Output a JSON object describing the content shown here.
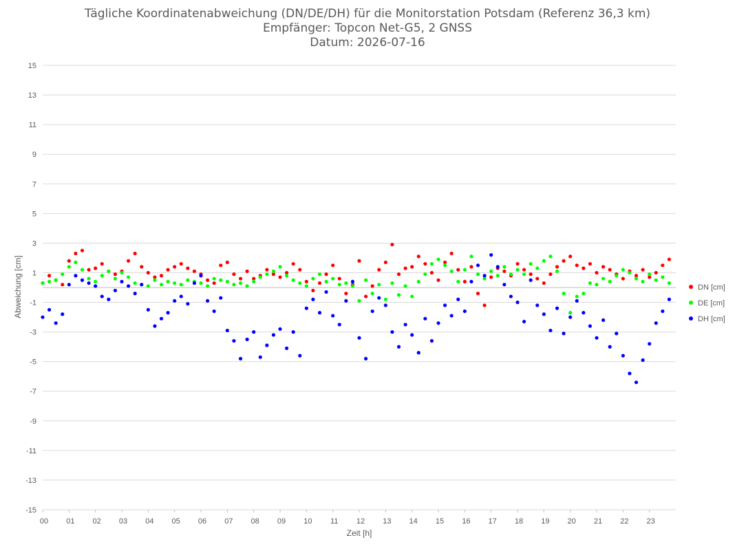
{
  "chart_data": {
    "type": "scatter",
    "title": "Tägliche Koordinatenabweichung (DN/DE/DH) für die Monitorstation Potsdam (Referenz 36,3 km)",
    "subtitle": "Empfänger: Topcon Net-G5, 2 GNSS",
    "date_line": "Datum: 2026-07-16",
    "xlabel": "Zeit [h]",
    "ylabel": "Abweichung [cm]",
    "xlim": [
      0,
      24
    ],
    "ylim": [
      -15,
      15
    ],
    "x_tick_labels": [
      "00",
      "01",
      "02",
      "03",
      "04",
      "05",
      "06",
      "07",
      "08",
      "09",
      "10",
      "11",
      "12",
      "13",
      "14",
      "15",
      "16",
      "17",
      "18",
      "19",
      "20",
      "21",
      "22",
      "23"
    ],
    "y_tick_labels": [
      "15",
      "13",
      "11",
      "9",
      "7",
      "5",
      "3",
      "1",
      "-1",
      "-3",
      "-5",
      "-7",
      "-9",
      "-11",
      "-13",
      "-15"
    ],
    "grid": true,
    "legend_position": "right",
    "series": [
      {
        "name": "DN [cm]",
        "color": "#ff0000",
        "x": [
          0.0,
          0.25,
          0.5,
          0.75,
          1.0,
          1.25,
          1.5,
          1.75,
          2.0,
          2.25,
          2.5,
          2.75,
          3.0,
          3.25,
          3.5,
          3.75,
          4.0,
          4.25,
          4.5,
          4.75,
          5.0,
          5.25,
          5.5,
          5.75,
          6.0,
          6.25,
          6.5,
          6.75,
          7.0,
          7.25,
          7.5,
          7.75,
          8.0,
          8.25,
          8.5,
          8.75,
          9.0,
          9.25,
          9.5,
          9.75,
          10.0,
          10.25,
          10.5,
          10.75,
          11.0,
          11.25,
          11.5,
          11.75,
          12.0,
          12.25,
          12.5,
          12.75,
          13.0,
          13.25,
          13.5,
          13.75,
          14.0,
          14.25,
          14.5,
          14.75,
          15.0,
          15.25,
          15.5,
          15.75,
          16.0,
          16.25,
          16.5,
          16.75,
          17.0,
          17.25,
          17.5,
          17.75,
          18.0,
          18.25,
          18.5,
          18.75,
          19.0,
          19.25,
          19.5,
          19.75,
          20.0,
          20.25,
          20.5,
          20.75,
          21.0,
          21.25,
          21.5,
          21.75,
          22.0,
          22.25,
          22.5,
          22.75,
          23.0,
          23.25,
          23.5,
          23.75
        ],
        "y": [
          0.3,
          0.8,
          0.5,
          0.2,
          1.8,
          2.3,
          2.5,
          1.2,
          1.3,
          1.6,
          1.1,
          0.9,
          1.1,
          1.8,
          2.3,
          1.4,
          1.0,
          0.7,
          0.8,
          1.2,
          1.4,
          1.6,
          1.3,
          1.1,
          0.9,
          0.5,
          0.3,
          1.5,
          1.7,
          0.9,
          0.6,
          1.1,
          0.6,
          0.8,
          1.2,
          0.9,
          0.7,
          1.0,
          1.6,
          1.2,
          0.4,
          -0.2,
          0.3,
          0.9,
          1.5,
          0.6,
          -0.4,
          0.2,
          1.8,
          -0.6,
          0.1,
          1.2,
          1.7,
          2.9,
          0.9,
          1.3,
          1.4,
          2.1,
          1.6,
          1.0,
          0.5,
          1.7,
          2.3,
          1.2,
          0.4,
          1.4,
          -0.4,
          -1.2,
          0.7,
          1.3,
          1.1,
          0.8,
          1.6,
          1.2,
          0.9,
          0.6,
          0.3,
          0.9,
          1.4,
          1.8,
          2.1,
          1.5,
          1.3,
          1.6,
          1.0,
          1.4,
          1.2,
          0.9,
          0.6,
          1.1,
          0.8,
          1.2,
          0.7,
          1.0,
          1.5,
          1.9
        ]
      },
      {
        "name": "DE [cm]",
        "color": "#00ff00",
        "x": [
          0.0,
          0.25,
          0.5,
          0.75,
          1.0,
          1.25,
          1.5,
          1.75,
          2.0,
          2.25,
          2.5,
          2.75,
          3.0,
          3.25,
          3.5,
          3.75,
          4.0,
          4.25,
          4.5,
          4.75,
          5.0,
          5.25,
          5.5,
          5.75,
          6.0,
          6.25,
          6.5,
          6.75,
          7.0,
          7.25,
          7.5,
          7.75,
          8.0,
          8.25,
          8.5,
          8.75,
          9.0,
          9.25,
          9.5,
          9.75,
          10.0,
          10.25,
          10.5,
          10.75,
          11.0,
          11.25,
          11.5,
          11.75,
          12.0,
          12.25,
          12.5,
          12.75,
          13.0,
          13.25,
          13.5,
          13.75,
          14.0,
          14.25,
          14.5,
          14.75,
          15.0,
          15.25,
          15.5,
          15.75,
          16.0,
          16.25,
          16.5,
          16.75,
          17.0,
          17.25,
          17.5,
          17.75,
          18.0,
          18.25,
          18.5,
          18.75,
          19.0,
          19.25,
          19.5,
          19.75,
          20.0,
          20.25,
          20.5,
          20.75,
          21.0,
          21.25,
          21.5,
          21.75,
          22.0,
          22.25,
          22.5,
          22.75,
          23.0,
          23.25,
          23.5,
          23.75
        ],
        "y": [
          0.3,
          0.4,
          0.5,
          0.9,
          1.4,
          1.7,
          1.2,
          0.6,
          0.4,
          0.8,
          1.1,
          0.6,
          1.0,
          0.7,
          0.3,
          0.2,
          0.1,
          0.5,
          0.2,
          0.4,
          0.3,
          0.2,
          0.5,
          0.4,
          0.3,
          0.1,
          0.6,
          0.5,
          0.4,
          0.2,
          0.3,
          0.1,
          0.4,
          0.7,
          0.9,
          1.1,
          1.4,
          0.8,
          0.5,
          0.3,
          0.1,
          0.6,
          0.9,
          0.4,
          0.6,
          0.2,
          0.3,
          0.1,
          -0.9,
          0.5,
          -0.4,
          0.2,
          -0.8,
          0.3,
          -0.5,
          0.1,
          -0.6,
          0.4,
          0.9,
          1.6,
          1.9,
          1.5,
          1.1,
          0.4,
          1.2,
          2.1,
          0.9,
          0.6,
          1.1,
          0.8,
          1.4,
          0.9,
          1.2,
          0.9,
          1.6,
          1.3,
          1.8,
          2.1,
          1.1,
          -0.4,
          -1.7,
          -0.6,
          -0.4,
          0.3,
          0.2,
          0.6,
          0.4,
          0.8,
          1.2,
          1.0,
          0.6,
          0.4,
          0.9,
          0.5,
          0.7,
          0.3
        ]
      },
      {
        "name": "DH [cm]",
        "color": "#0000ff",
        "x": [
          0.0,
          0.25,
          0.5,
          0.75,
          1.0,
          1.25,
          1.5,
          1.75,
          2.0,
          2.25,
          2.5,
          2.75,
          3.0,
          3.25,
          3.5,
          3.75,
          4.0,
          4.25,
          4.5,
          4.75,
          5.0,
          5.25,
          5.5,
          5.75,
          6.0,
          6.25,
          6.5,
          6.75,
          7.0,
          7.25,
          7.5,
          7.75,
          8.0,
          8.25,
          8.5,
          8.75,
          9.0,
          9.25,
          9.5,
          9.75,
          10.0,
          10.25,
          10.5,
          10.75,
          11.0,
          11.25,
          11.5,
          11.75,
          12.0,
          12.25,
          12.5,
          12.75,
          13.0,
          13.25,
          13.5,
          13.75,
          14.0,
          14.25,
          14.5,
          14.75,
          15.0,
          15.25,
          15.5,
          15.75,
          16.0,
          16.25,
          16.5,
          16.75,
          17.0,
          17.25,
          17.5,
          17.75,
          18.0,
          18.25,
          18.5,
          18.75,
          19.0,
          19.25,
          19.5,
          19.75,
          20.0,
          20.25,
          20.5,
          20.75,
          21.0,
          21.25,
          21.5,
          21.75,
          22.0,
          22.25,
          22.5,
          22.75,
          23.0,
          23.25,
          23.5,
          23.75
        ],
        "y": [
          -2.0,
          -1.5,
          -2.4,
          -1.8,
          0.2,
          0.8,
          0.5,
          0.3,
          0.1,
          -0.6,
          -0.8,
          -0.2,
          0.4,
          0.1,
          -0.4,
          0.2,
          -1.5,
          -2.6,
          -2.1,
          -1.7,
          -0.9,
          -0.6,
          -1.1,
          0.3,
          0.8,
          -0.9,
          -1.6,
          -0.7,
          -2.9,
          -3.6,
          -4.8,
          -3.5,
          -3.0,
          -4.7,
          -3.9,
          -3.2,
          -2.8,
          -4.1,
          -3.0,
          -4.6,
          -1.4,
          -0.8,
          -1.7,
          -0.3,
          -1.9,
          -2.5,
          -0.9,
          0.4,
          -3.4,
          -4.8,
          -1.6,
          -0.7,
          -1.2,
          -3.0,
          -4.0,
          -2.5,
          -3.2,
          -4.4,
          -2.1,
          -3.6,
          -2.4,
          -1.2,
          -1.9,
          -0.8,
          -1.6,
          0.4,
          1.5,
          0.8,
          2.2,
          1.4,
          0.2,
          -0.6,
          -1.0,
          -2.3,
          0.5,
          -1.2,
          -1.8,
          -2.9,
          -1.4,
          -3.1,
          -2.0,
          -0.9,
          -1.7,
          -2.6,
          -3.4,
          -2.2,
          -4.0,
          -3.1,
          -4.6,
          -5.8,
          -6.4,
          -4.9,
          -3.8,
          -2.4,
          -1.6,
          -0.8
        ]
      }
    ]
  }
}
